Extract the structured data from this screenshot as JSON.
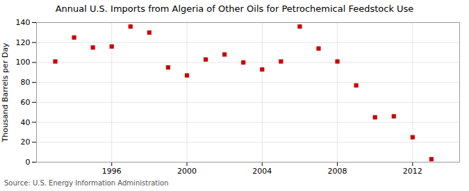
{
  "chart_data": {
    "type": "scatter",
    "title": "Annual U.S. Imports from Algeria of Other Oils for Petrochemical Feedstock Use",
    "ylabel": "Thousand Barrels per Day",
    "source": "Source: U.S. Energy Information Administration",
    "x": [
      1993,
      1994,
      1995,
      1996,
      1997,
      1998,
      1999,
      2000,
      2001,
      2002,
      2003,
      2004,
      2005,
      2006,
      2007,
      2008,
      2009,
      2010,
      2011,
      2012,
      2013
    ],
    "values": [
      101,
      125,
      115,
      116,
      136,
      130,
      95,
      87,
      103,
      108,
      100,
      93,
      101,
      136,
      114,
      101,
      77,
      45,
      46,
      25,
      3
    ],
    "color": "#cc0000",
    "marker": "square",
    "grid": true,
    "xlim": [
      1992.0,
      2014.5
    ],
    "xticks": [
      1996,
      2000,
      2004,
      2008,
      2012
    ],
    "ylim": [
      0,
      140
    ],
    "yticks": [
      0,
      20,
      40,
      60,
      80,
      100,
      120,
      140
    ]
  }
}
